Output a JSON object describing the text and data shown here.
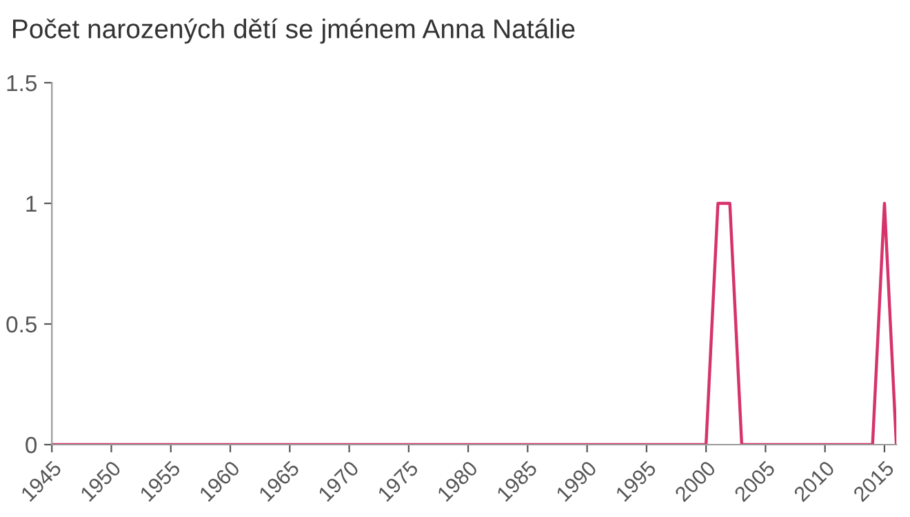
{
  "chart_data": {
    "type": "line",
    "title": "Počet narozených dětí se jménem Anna Natálie",
    "x": [
      1945,
      2000,
      2001,
      2002,
      2003,
      2014,
      2015,
      2016
    ],
    "series": [
      {
        "color": "#d6336c",
        "values": [
          0,
          0,
          1,
          1,
          0,
          0,
          1,
          0
        ]
      }
    ],
    "xlim": [
      1945,
      2016
    ],
    "xticks": [
      1945,
      1950,
      1955,
      1960,
      1965,
      1970,
      1975,
      1980,
      1985,
      1990,
      1995,
      2000,
      2005,
      2010,
      2015
    ],
    "ylim": [
      0,
      1.5
    ],
    "yticks": [
      0,
      0.5,
      1,
      1.5
    ],
    "grid": false,
    "legend": false,
    "marker": "none",
    "line_style": "solid"
  }
}
